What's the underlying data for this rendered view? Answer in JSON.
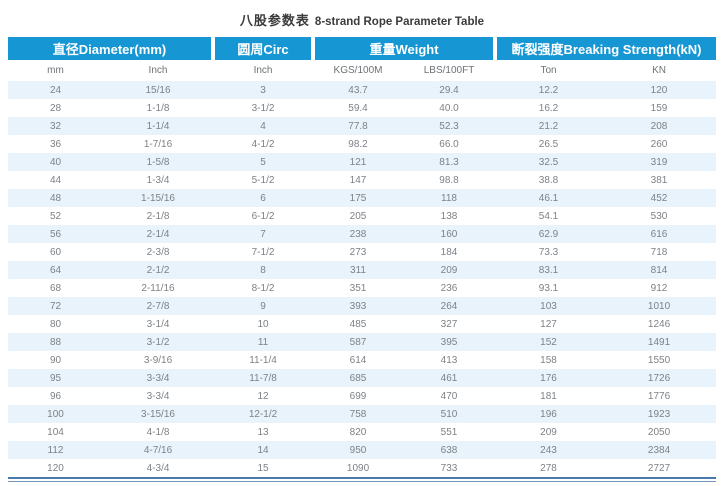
{
  "title": {
    "zh": "八股参数表",
    "en": "8-strand Rope Parameter Table"
  },
  "table": {
    "groups": [
      {
        "label": "直径Diameter(mm)",
        "colspan": 2
      },
      {
        "label": "圆周Circ",
        "colspan": 1
      },
      {
        "label": "重量Weight",
        "colspan": 2
      },
      {
        "label": "断裂强度Breaking Strength(kN)",
        "colspan": 2
      }
    ],
    "columns": [
      "mm",
      "Inch",
      "Inch",
      "KGS/100M",
      "LBS/100FT",
      "Ton",
      "KN"
    ],
    "rows": [
      [
        "24",
        "15/16",
        "3",
        "43.7",
        "29.4",
        "12.2",
        "120"
      ],
      [
        "28",
        "1-1/8",
        "3-1/2",
        "59.4",
        "40.0",
        "16.2",
        "159"
      ],
      [
        "32",
        "1-1/4",
        "4",
        "77.8",
        "52.3",
        "21.2",
        "208"
      ],
      [
        "36",
        "1-7/16",
        "4-1/2",
        "98.2",
        "66.0",
        "26.5",
        "260"
      ],
      [
        "40",
        "1-5/8",
        "5",
        "121",
        "81.3",
        "32.5",
        "319"
      ],
      [
        "44",
        "1-3/4",
        "5-1/2",
        "147",
        "98.8",
        "38.8",
        "381"
      ],
      [
        "48",
        "1-15/16",
        "6",
        "175",
        "118",
        "46.1",
        "452"
      ],
      [
        "52",
        "2-1/8",
        "6-1/2",
        "205",
        "138",
        "54.1",
        "530"
      ],
      [
        "56",
        "2-1/4",
        "7",
        "238",
        "160",
        "62.9",
        "616"
      ],
      [
        "60",
        "2-3/8",
        "7-1/2",
        "273",
        "184",
        "73.3",
        "718"
      ],
      [
        "64",
        "2-1/2",
        "8",
        "311",
        "209",
        "83.1",
        "814"
      ],
      [
        "68",
        "2-11/16",
        "8-1/2",
        "351",
        "236",
        "93.1",
        "912"
      ],
      [
        "72",
        "2-7/8",
        "9",
        "393",
        "264",
        "103",
        "1010"
      ],
      [
        "80",
        "3-1/4",
        "10",
        "485",
        "327",
        "127",
        "1246"
      ],
      [
        "88",
        "3-1/2",
        "11",
        "587",
        "395",
        "152",
        "1491"
      ],
      [
        "90",
        "3-9/16",
        "11-1/4",
        "614",
        "413",
        "158",
        "1550"
      ],
      [
        "95",
        "3-3/4",
        "11-7/8",
        "685",
        "461",
        "176",
        "1726"
      ],
      [
        "96",
        "3-3/4",
        "12",
        "699",
        "470",
        "181",
        "1776"
      ],
      [
        "100",
        "3-15/16",
        "12-1/2",
        "758",
        "510",
        "196",
        "1923"
      ],
      [
        "104",
        "4-1/8",
        "13",
        "820",
        "551",
        "209",
        "2050"
      ],
      [
        "112",
        "4-7/16",
        "14",
        "950",
        "638",
        "243",
        "2384"
      ],
      [
        "120",
        "4-3/4",
        "15",
        "1090",
        "733",
        "278",
        "2727"
      ]
    ]
  },
  "colors": {
    "header_blue": "#1697d4",
    "row_alt_blue": "#e8f3fb",
    "bottom_rule_blue": "#4a79ad",
    "text_gray": "#7d8287"
  }
}
